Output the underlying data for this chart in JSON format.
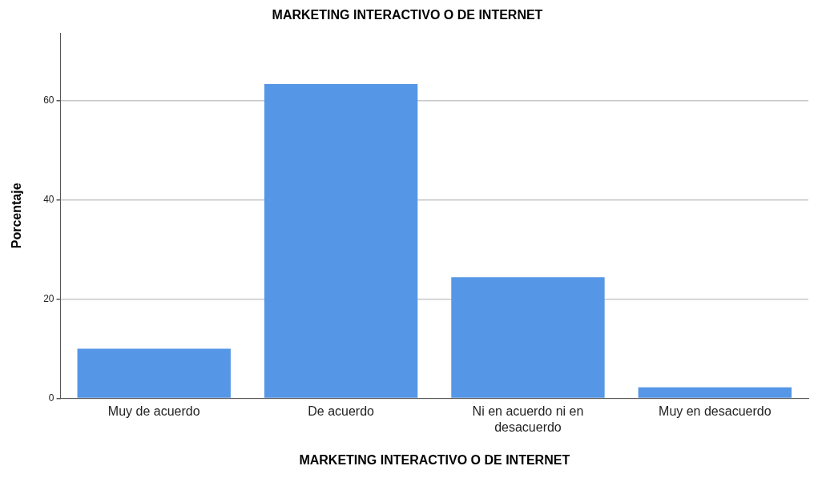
{
  "chart_data": {
    "type": "bar",
    "title": "MARKETING INTERACTIVO O DE INTERNET",
    "xlabel": "MARKETING INTERACTIVO O DE INTERNET",
    "ylabel": "Porcentaje",
    "categories": [
      "Muy de acuerdo",
      "De acuerdo",
      "Ni en acuerdo ni en desacuerdo",
      "Muy en desacuerdo"
    ],
    "values": [
      10.0,
      63.4,
      24.4,
      2.2
    ],
    "color": "#5596e6",
    "ylim": [
      0,
      73.7
    ],
    "yticks": [
      0,
      20,
      40,
      60
    ],
    "grid": "y",
    "legend": false
  }
}
